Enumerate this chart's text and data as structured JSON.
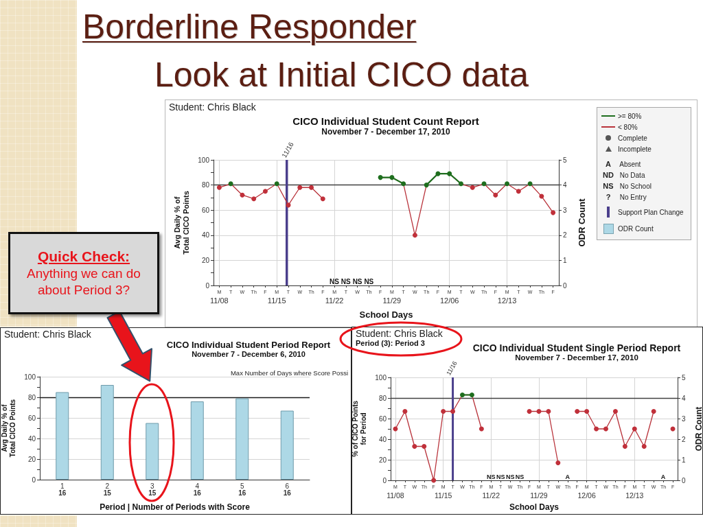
{
  "chart_data": [
    {
      "type": "other",
      "title": "Borderline Responder",
      "subtitle": "Look at Initial CICO data"
    },
    {
      "type": "line",
      "title": "CICO Individual Student Count Report",
      "subtitle": "November 7 - December 17, 2010",
      "xlabel": "School Days",
      "ylabel": "Avg Daily % of\nTotal CICO Points",
      "y2label": "ODR Count",
      "categories": [
        "M",
        "T",
        "W",
        "Th",
        "F",
        "M",
        "T",
        "W",
        "Th",
        "F",
        "M",
        "T",
        "W",
        "Th",
        "F",
        "M",
        "T",
        "W",
        "Th",
        "F",
        "M",
        "T",
        "W",
        "Th",
        "F",
        "M",
        "T",
        "W",
        "Th",
        "F"
      ],
      "ylim": [
        0,
        100
      ],
      "yticks": [
        0,
        {
          "value": 10,
          "label": null
        },
        20,
        {
          "value": 30,
          "label": null
        },
        40,
        {
          "value": 50,
          "label": null
        },
        60,
        {
          "value": 70,
          "label": null
        },
        80,
        {
          "value": 90,
          "label": null
        },
        100
      ],
      "y2lim": [
        0,
        5
      ],
      "y2ticks": [
        0,
        1,
        2,
        3,
        4,
        5
      ],
      "series": [
        {
          "name": ">= 80%",
          "color": "#1e6e1e",
          "marker": "none",
          "values": [
            null,
            null,
            null,
            null,
            null,
            null,
            null,
            null,
            null,
            null,
            null,
            null,
            null,
            null,
            86,
            86,
            81,
            null,
            80,
            89,
            89,
            81,
            null,
            null,
            null,
            null,
            null,
            null,
            null,
            null
          ]
        },
        {
          "name": "< 80%",
          "color": "#b8323a",
          "values": [
            78,
            81,
            72,
            69,
            75,
            81,
            64,
            78,
            78,
            69,
            null,
            null,
            null,
            null,
            86,
            86,
            81,
            40,
            80,
            89,
            89,
            81,
            78,
            81,
            72,
            81,
            75,
            81,
            71,
            58
          ],
          "colors": [
            "#c0303a",
            "#1e6e1e",
            "#c0303a",
            "#c0303a",
            "#c0303a",
            "#1e6e1e",
            "#c0303a",
            "#c0303a",
            "#c0303a",
            "#c0303a",
            null,
            null,
            null,
            null,
            "#1e6e1e",
            "#1e6e1e",
            "#1e6e1e",
            "#c0303a",
            "#1e6e1e",
            "#1e6e1e",
            "#1e6e1e",
            "#1e6e1e",
            "#c0303a",
            "#1e6e1e",
            "#c0303a",
            "#1e6e1e",
            "#c0303a",
            "#1e6e1e",
            "#c0303a",
            "#c0303a"
          ]
        },
        {
          "name": "Support Plan Change",
          "type": "bar",
          "color": "#4b3f8c",
          "values": [
            null,
            null,
            null,
            null,
            null,
            null,
            100,
            null,
            null,
            null,
            null,
            null,
            null,
            null,
            null,
            null,
            null,
            null,
            null,
            null,
            null,
            null,
            null,
            null,
            null,
            null,
            null,
            null,
            null,
            null
          ]
        },
        {
          "name": "ODR Count",
          "type": "bar",
          "color": "#add8e6",
          "values": [
            null,
            null,
            null,
            null,
            null,
            null,
            null,
            null,
            null,
            null,
            null,
            null,
            null,
            null,
            null,
            null,
            null,
            null,
            null,
            null,
            null,
            null,
            null,
            null,
            null,
            null,
            null,
            null,
            null,
            null
          ]
        }
      ],
      "marker": "circle",
      "line_style": "solid",
      "grid": true,
      "legend": "top right",
      "ref_lines": [
        {
          "axis": "y",
          "value": 80,
          "color": "#404040"
        }
      ],
      "annotations": [
        "Student: Chris Black",
        "Complete",
        "Incomplete",
        "A Absent",
        "ND No Data",
        "NS No School",
        "? No Entry",
        "11/16",
        "NS",
        "NS",
        "NS",
        "NS",
        "11/08",
        "11/15",
        "11/22",
        "11/29",
        "12/06",
        "12/13"
      ]
    },
    {
      "type": "bar",
      "title": "CICO Individual Student Period Report",
      "subtitle": "November 7 - December 6, 2010",
      "xlabel": "Period | Number of Periods with Score",
      "ylabel": "Avg Daily % of\nTotal CICO Points",
      "categories": [
        "1\n16",
        "2\n15",
        "3\n15",
        "4\n16",
        "5\n16",
        "6\n16"
      ],
      "values": [
        85,
        92,
        55,
        76,
        79,
        67
      ],
      "color": "#add8e6",
      "ylim": [
        0,
        100
      ],
      "yticks": [
        0,
        {
          "value": 10,
          "label": null
        },
        20,
        {
          "value": 30,
          "label": null
        },
        40,
        {
          "value": 50,
          "label": null
        },
        60,
        {
          "value": 70,
          "label": null
        },
        80,
        {
          "value": 90,
          "label": null
        },
        100
      ],
      "grid": "y",
      "ref_lines": [
        {
          "axis": "y",
          "value": 80,
          "color": "#1a1a1a"
        }
      ],
      "annotations": [
        "Student: Chris Black",
        "Max Number of Days where Score Possi",
        "Quick Check:",
        "Anything we can do about Period 3?"
      ]
    },
    {
      "type": "line",
      "title": "CICO Individual Student Single Period Report",
      "subtitle": "November 7 - December 17, 2010",
      "xlabel": "School Days",
      "ylabel": "% of CICO Points\nfor Period",
      "y2label": "ODR Count",
      "categories": [
        "M",
        "T",
        "W",
        "Th",
        "F",
        "M",
        "T",
        "W",
        "Th",
        "F",
        "M",
        "T",
        "W",
        "Th",
        "F",
        "M",
        "T",
        "W",
        "Th",
        "F",
        "M",
        "T",
        "W",
        "Th",
        "F",
        "M",
        "T",
        "W",
        "Th",
        "F"
      ],
      "ylim": [
        0,
        100
      ],
      "yticks": [
        0,
        {
          "value": 10,
          "label": null
        },
        20,
        {
          "value": 30,
          "label": null
        },
        40,
        {
          "value": 50,
          "label": null
        },
        60,
        {
          "value": 70,
          "label": null
        },
        80,
        {
          "value": 90,
          "label": null
        },
        100
      ],
      "y2lim": [
        0,
        5
      ],
      "y2ticks": [
        0,
        1,
        2,
        3,
        4,
        5
      ],
      "series": [
        {
          "color": "#1e6e1e",
          "marker": "none",
          "values": [
            null,
            null,
            null,
            null,
            null,
            null,
            null,
            83,
            83,
            null,
            null,
            null,
            null,
            null,
            null,
            null,
            null,
            null,
            null,
            null,
            null,
            null,
            null,
            null,
            null,
            null,
            null,
            null,
            null,
            null
          ]
        },
        {
          "color": "#b8323a",
          "values": [
            50,
            67,
            33,
            33,
            0,
            67,
            67,
            83,
            83,
            50,
            null,
            null,
            null,
            null,
            67,
            67,
            67,
            17,
            null,
            67,
            67,
            50,
            50,
            67,
            33,
            50,
            33,
            67,
            null,
            50
          ],
          "colors": [
            "#c0303a",
            "#c0303a",
            "#c0303a",
            "#c0303a",
            "#c0303a",
            "#c0303a",
            "#c0303a",
            "#1e6e1e",
            "#1e6e1e",
            "#c0303a",
            null,
            null,
            null,
            null,
            "#c0303a",
            "#c0303a",
            "#c0303a",
            "#c0303a",
            null,
            "#c0303a",
            "#c0303a",
            "#c0303a",
            "#c0303a",
            "#c0303a",
            "#c0303a",
            "#c0303a",
            "#c0303a",
            "#c0303a",
            null,
            "#c0303a"
          ]
        },
        {
          "type": "bar",
          "color": "#4b3f8c",
          "values": [
            null,
            null,
            null,
            null,
            null,
            null,
            100,
            null,
            null,
            null,
            null,
            null,
            null,
            null,
            null,
            null,
            null,
            null,
            null,
            null,
            null,
            null,
            null,
            null,
            null,
            null,
            null,
            null,
            null,
            null
          ]
        }
      ],
      "marker": "circle",
      "line_style": "solid",
      "grid": true,
      "ref_lines": [
        {
          "axis": "y",
          "value": 80,
          "color": "#404040"
        }
      ],
      "annotations": [
        "Student: Chris Black",
        "Period (3): Period 3",
        "11/16",
        "NS",
        "NS",
        "NS",
        "NS",
        "A",
        "A",
        "11/08",
        "11/15",
        "11/22",
        "11/29",
        "12/06",
        "12/13"
      ]
    }
  ]
}
